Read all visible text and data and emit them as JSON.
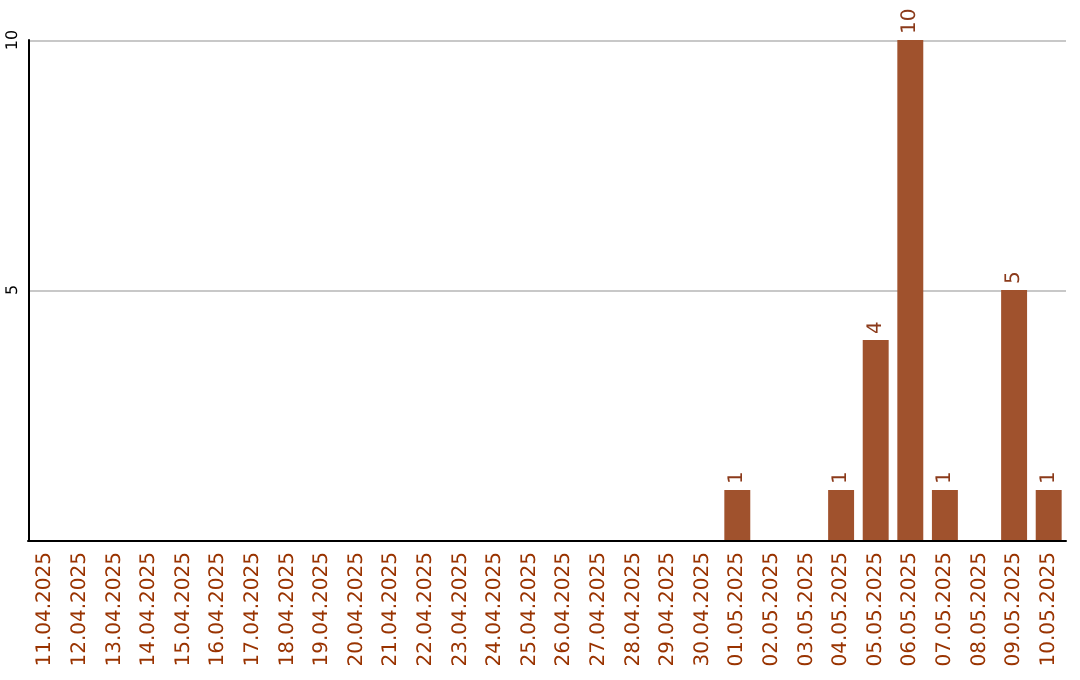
{
  "chart_data": {
    "type": "bar",
    "categories": [
      "11.04.2025",
      "12.04.2025",
      "13.04.2025",
      "14.04.2025",
      "15.04.2025",
      "16.04.2025",
      "17.04.2025",
      "18.04.2025",
      "19.04.2025",
      "20.04.2025",
      "21.04.2025",
      "22.04.2025",
      "23.04.2025",
      "24.04.2025",
      "25.04.2025",
      "26.04.2025",
      "27.04.2025",
      "28.04.2025",
      "29.04.2025",
      "30.04.2025",
      "01.05.2025",
      "02.05.2025",
      "03.05.2025",
      "04.05.2025",
      "05.05.2025",
      "06.05.2025",
      "07.05.2025",
      "08.05.2025",
      "09.05.2025",
      "10.05.2025"
    ],
    "values": [
      0,
      0,
      0,
      0,
      0,
      0,
      0,
      0,
      0,
      0,
      0,
      0,
      0,
      0,
      0,
      0,
      0,
      0,
      0,
      0,
      1,
      0,
      0,
      1,
      4,
      10,
      1,
      0,
      5,
      1
    ],
    "value_labels": [
      null,
      null,
      null,
      null,
      null,
      null,
      null,
      null,
      null,
      null,
      null,
      null,
      null,
      null,
      null,
      null,
      null,
      null,
      null,
      null,
      "1",
      null,
      null,
      "1",
      "4",
      "10",
      "1",
      null,
      "5",
      "1"
    ],
    "color": "#a0522d",
    "ylim": [
      0,
      10
    ],
    "yticks": [
      5,
      10
    ],
    "grid": "y"
  }
}
